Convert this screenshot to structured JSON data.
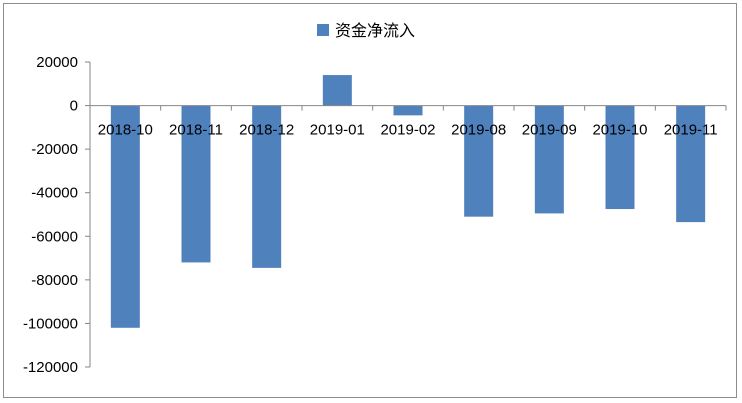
{
  "chart_data": {
    "type": "bar",
    "categories": [
      "2018-10",
      "2018-11",
      "2018-12",
      "2019-01",
      "2019-02",
      "2019-08",
      "2019-09",
      "2019-10",
      "2019-11"
    ],
    "series": [
      {
        "name": "资金净流入",
        "values": [
          -102000,
          -72000,
          -74500,
          14000,
          -4500,
          -51000,
          -49500,
          -47500,
          -53500
        ]
      }
    ],
    "ylim": [
      -120000,
      20000
    ],
    "yticks": [
      20000,
      0,
      -20000,
      -40000,
      -60000,
      -80000,
      -100000,
      -120000
    ],
    "legend_position": "top-center",
    "grid": false,
    "colors": {
      "bar": "#4f81bd",
      "axis": "#868686",
      "border": "#8c8c8c"
    }
  }
}
